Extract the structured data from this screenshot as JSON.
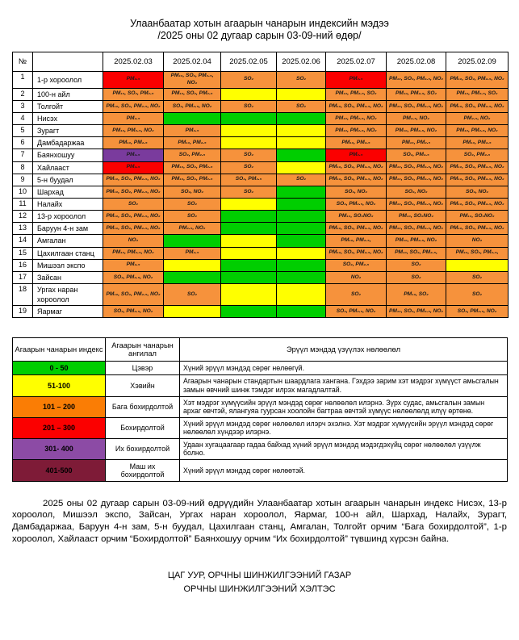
{
  "title": {
    "line1": "Улаанбаатар хотын агаарын чанарын индексийн мэдээ",
    "line2": "/2025 оны 02 дугаар сарын 03-09-ний өдөр/"
  },
  "colors": {
    "green": "#00CE00",
    "yellow": "#FFFF00",
    "orange": "#F6923C",
    "red": "#FB0000",
    "purple": "#7A3B9D"
  },
  "table": {
    "number_header": "№",
    "station_header": "",
    "dates": [
      "2025.02.03",
      "2025.02.04",
      "2025.02.05",
      "2025.02.06",
      "2025.02.07",
      "2025.02.08",
      "2025.02.09"
    ],
    "rows": [
      {
        "no": "1",
        "station": "1-р хороолол",
        "cells": [
          [
            "red",
            "PM₂.₅"
          ],
          [
            "orange",
            "PM₁₀, SO₂, PM₂.₅, NO₂"
          ],
          [
            "orange",
            "SO₂"
          ],
          [
            "orange",
            "SO₂"
          ],
          [
            "red",
            "PM₂.₅"
          ],
          [
            "orange",
            "PM₁₀, SO₂, PM₂.₅, NO₂"
          ],
          [
            "orange",
            "PM₁₀, SO₂, PM₂.₅, NO₂"
          ]
        ]
      },
      {
        "no": "2",
        "station": "100-н айл",
        "cells": [
          [
            "orange",
            "PM₁₀, SO₂, PM₂.₅"
          ],
          [
            "orange",
            "PM₁₀, SO₂, PM₂.₅"
          ],
          [
            "yellow",
            ""
          ],
          [
            "yellow",
            ""
          ],
          [
            "orange",
            "PM₁₀, PM₂.₅, SO₂"
          ],
          [
            "orange",
            "PM₁₀, PM₂.₅, SO₂"
          ],
          [
            "orange",
            "PM₁₀, PM₂.₅, SO₂"
          ]
        ]
      },
      {
        "no": "3",
        "station": "Толгойт",
        "cells": [
          [
            "orange",
            "PM₁₀, SO₂, PM₂.₅, NO₂"
          ],
          [
            "orange",
            "SO₂, PM₂.₅, NO₂"
          ],
          [
            "orange",
            "SO₂"
          ],
          [
            "orange",
            "SO₂"
          ],
          [
            "orange",
            "PM₁₀, SO₂, PM₂.₅, NO₂"
          ],
          [
            "orange",
            "PM₁₀, SO₂, PM₂.₅, NO₂"
          ],
          [
            "orange",
            "PM₁₀, SO₂, PM₂.₅, NO₂"
          ]
        ]
      },
      {
        "no": "4",
        "station": "Нисэх",
        "cells": [
          [
            "orange",
            "PM₂.₅"
          ],
          [
            "green",
            ""
          ],
          [
            "green",
            ""
          ],
          [
            "green",
            ""
          ],
          [
            "orange",
            "PM₁₀, PM₂.₅, NO₂"
          ],
          [
            "orange",
            "PM₂.₅, NO₂"
          ],
          [
            "orange",
            "PM₂.₅, NO₂"
          ]
        ]
      },
      {
        "no": "5",
        "station": "Зурагт",
        "cells": [
          [
            "orange",
            "PM₁₀, PM₂.₅, NO₂"
          ],
          [
            "orange",
            "PM₂.₅"
          ],
          [
            "yellow",
            ""
          ],
          [
            "yellow",
            ""
          ],
          [
            "orange",
            "PM₁₀, PM₂.₅, NO₂"
          ],
          [
            "orange",
            "PM₁₀, PM₂.₅, NO₂"
          ],
          [
            "orange",
            "PM₁₀, PM₂.₅, NO₂"
          ]
        ]
      },
      {
        "no": "6",
        "station": "Дамбадаржаа",
        "cells": [
          [
            "orange",
            "PM₁₀, PM₂.₅"
          ],
          [
            "orange",
            "PM₁₀, PM₂.₅"
          ],
          [
            "yellow",
            ""
          ],
          [
            "yellow",
            ""
          ],
          [
            "orange",
            "PM₁₀, PM₂.₅"
          ],
          [
            "orange",
            "PM₁₀, PM₂.₅"
          ],
          [
            "orange",
            "PM₁₀, PM₂.₅"
          ]
        ]
      },
      {
        "no": "7",
        "station": "Баянхошуу",
        "cells": [
          [
            "purple",
            "PM₂.₅"
          ],
          [
            "orange",
            "SO₂, PM₂.₅"
          ],
          [
            "orange",
            "SO₂"
          ],
          [
            "green",
            ""
          ],
          [
            "red",
            "PM₂.₅"
          ],
          [
            "orange",
            "SO₂, PM₂.₅"
          ],
          [
            "orange",
            "SO₂, PM₂.₅"
          ]
        ]
      },
      {
        "no": "8",
        "station": "Хайлааст",
        "cells": [
          [
            "red",
            "PM₂.₅"
          ],
          [
            "orange",
            "PM₁₀, SO₂, PM₂.₅"
          ],
          [
            "orange",
            "SO₂"
          ],
          [
            "yellow",
            ""
          ],
          [
            "orange",
            "PM₁₀, SO₂, PM₂.₅, NO₂"
          ],
          [
            "orange",
            "PM₁₀, SO₂, PM₂.₅, NO₂"
          ],
          [
            "orange",
            "PM₁₀, SO₂, PM₂.₅, NO₂"
          ]
        ]
      },
      {
        "no": "9",
        "station": "5-н буудал",
        "cells": [
          [
            "orange",
            "PM₁₀, SO₂, PM₂.₅, NO₂"
          ],
          [
            "orange",
            "PM₁₀, SO₂, PM₂.₅"
          ],
          [
            "orange",
            "SO₂, PM₂.₅"
          ],
          [
            "orange",
            "SO₂"
          ],
          [
            "orange",
            "PM₁₀, SO₂, PM₂.₅, NO₂"
          ],
          [
            "orange",
            "PM₁₀, SO₂, PM₂.₅, NO₂"
          ],
          [
            "orange",
            "PM₁₀, SO₂, PM₂.₅, NO₂"
          ]
        ]
      },
      {
        "no": "10",
        "station": "Шархад",
        "cells": [
          [
            "orange",
            "PM₁₀, SO₂, PM₂.₅, NO₂"
          ],
          [
            "orange",
            "SO₂, NO₂"
          ],
          [
            "orange",
            "SO₂"
          ],
          [
            "green",
            ""
          ],
          [
            "orange",
            "SO₂, NO₂"
          ],
          [
            "orange",
            "SO₂, NO₂"
          ],
          [
            "orange",
            "SO₂, NO₂"
          ]
        ]
      },
      {
        "no": "11",
        "station": "Налайх",
        "cells": [
          [
            "orange",
            "SO₂"
          ],
          [
            "orange",
            "SO₂"
          ],
          [
            "yellow",
            ""
          ],
          [
            "green",
            ""
          ],
          [
            "orange",
            "SO₂, PM₂.₅, NO₂"
          ],
          [
            "orange",
            "PM₁₀, SO₂, PM₂.₅, NO₂"
          ],
          [
            "orange",
            "PM₁₀, SO₂, PM₂.₅, NO₂"
          ]
        ]
      },
      {
        "no": "12",
        "station": "13-р хороолол",
        "cells": [
          [
            "orange",
            "PM₁₀, SO₂, PM₂.₅, NO₂"
          ],
          [
            "orange",
            "SO₂"
          ],
          [
            "green",
            ""
          ],
          [
            "green",
            ""
          ],
          [
            "orange",
            "PM₁₀, SO₂NO₂"
          ],
          [
            "orange",
            "PM₁₀, SO₂NO₂"
          ],
          [
            "orange",
            "PM₁₀, SO₂NO₂"
          ]
        ]
      },
      {
        "no": "13",
        "station": "Баруун 4-н зам",
        "cells": [
          [
            "orange",
            "PM₁₀, SO₂, PM₂.₅, NO₂"
          ],
          [
            "orange",
            "PM₂.₅, NO₂"
          ],
          [
            "green",
            ""
          ],
          [
            "green",
            ""
          ],
          [
            "orange",
            "PM₁₀, SO₂, PM₂.₅, NO₂"
          ],
          [
            "orange",
            "PM₁₀, SO₂, PM₂.₅, NO₂"
          ],
          [
            "orange",
            "PM₁₀, SO₂, PM₂.₅, NO₂"
          ]
        ]
      },
      {
        "no": "14",
        "station": "Амгалан",
        "cells": [
          [
            "orange",
            "NO₂"
          ],
          [
            "green",
            ""
          ],
          [
            "yellow",
            ""
          ],
          [
            "green",
            ""
          ],
          [
            "orange",
            "PM₁₀, PM₂.₅,"
          ],
          [
            "orange",
            "PM₁₀, PM₂.₅, NO₂"
          ],
          [
            "orange",
            "NO₂"
          ]
        ]
      },
      {
        "no": "15",
        "station": "Цахилгаан станц",
        "cells": [
          [
            "orange",
            "PM₁₀, PM₂.₅, NO₂"
          ],
          [
            "orange",
            "PM₂.₅"
          ],
          [
            "yellow",
            ""
          ],
          [
            "yellow",
            ""
          ],
          [
            "orange",
            "PM₁₀, SO₂, PM₂.₅, NO₂"
          ],
          [
            "orange",
            "PM₁₀, SO₂, PM₂.₅,"
          ],
          [
            "orange",
            "PM₁₀, SO₂, PM₂.₅,"
          ]
        ]
      },
      {
        "no": "16",
        "station": "Мишээл экспо",
        "cells": [
          [
            "orange",
            "PM₂.₅"
          ],
          [
            "yellow",
            ""
          ],
          [
            "green",
            ""
          ],
          [
            "green",
            ""
          ],
          [
            "orange",
            "SO₂, PM₂.₅"
          ],
          [
            "orange",
            "SO₂"
          ],
          [
            "yellow",
            ""
          ]
        ]
      },
      {
        "no": "17",
        "station": "Зайсан",
        "cells": [
          [
            "orange",
            "SO₂, PM₂.₅, NO₂"
          ],
          [
            "green",
            ""
          ],
          [
            "green",
            ""
          ],
          [
            "green",
            ""
          ],
          [
            "orange",
            "NO₂"
          ],
          [
            "orange",
            "SO₂"
          ],
          [
            "orange",
            "SO₂"
          ]
        ]
      },
      {
        "no": "18",
        "station": "Ургах наран хороолол",
        "cells": [
          [
            "orange",
            "PM₁₀, SO₂, PM₂.₅, NO₂"
          ],
          [
            "orange",
            "SO₂"
          ],
          [
            "yellow",
            ""
          ],
          [
            "yellow",
            ""
          ],
          [
            "orange",
            "SO₂"
          ],
          [
            "orange",
            "PM₁₀, SO₂"
          ],
          [
            "orange",
            "SO₂"
          ]
        ]
      },
      {
        "no": "19",
        "station": "Яармаг",
        "cells": [
          [
            "orange",
            "SO₂, PM₂.₅, NO₂"
          ],
          [
            "yellow",
            ""
          ],
          [
            "green",
            ""
          ],
          [
            "green",
            ""
          ],
          [
            "orange",
            "SO₂, PM₂.₅, NO₂"
          ],
          [
            "orange",
            "PM₁₀, SO₂, PM₂.₅, NO₂"
          ],
          [
            "orange",
            "SO₂, PM₂.₅, NO₂"
          ]
        ]
      }
    ]
  },
  "legend": {
    "headers": [
      "Агаарын чанарын индекс",
      "Агаарын чанарын ангилал",
      "Эрүүл мэндэд үзүүлэх нөлөөлөл"
    ],
    "rows": [
      {
        "range": "0 - 50",
        "color": "#00CE00",
        "label": "Цэвэр",
        "desc": "Хүний эрүүл мэндэд сөрөг нөлөөгүй."
      },
      {
        "range": "51-100",
        "color": "#FFFF00",
        "label": "Хэвийн",
        "desc": "Агаарын чанарын стандартын шаардлага хангана. Гэхдээ зарим хэт мэдрэг хүмүүст  амьсгалын замын өвчний шинж тэмдэг илрэх магадлалтай."
      },
      {
        "range": "101 – 200",
        "color": "#FA7D05",
        "label": "Бага бохирдолтой",
        "desc": "Хэт мэдрэг хүмүүсийн эрүүл мэндэд  сөрөг нөлөөлөл илэрнэ. Зүрх судас, амьсгалын замын архаг өвчтэй, ялангуяа гуурсан хоолойн багтраа өвчтэй хүмүүс нөлөөлөлд илүү өртөнө."
      },
      {
        "range": "201 – 300",
        "color": "#FB0000",
        "label": "Бохирдолтой",
        "desc": "Хүний эрүүл мэндэд сөрөг нөлөөлөл илэрч эхэлнэ. Хэт мэдрэг хүмүүсийн эрүүл мэндэд сөрөг нөлөөлөл хүндээр илэрнэ."
      },
      {
        "range": "301- 400",
        "color": "#8C4BA5",
        "label": "Их бохирдолтой",
        "desc": "Удаан хугацаагаар гадаа байхад хүний эрүүл мэндэд мэдэгдэхүйц сөрөг нөлөөлөл үзүүлж болно."
      },
      {
        "range": "401-500",
        "color": "#7E1B37",
        "label": "Маш их бохирдолтой",
        "desc": "Хүний эрүүл мэндэд сөрөг нөлөөтэй."
      }
    ]
  },
  "summary": "2025 оны 02 дугаар сарын 03-09-ний өдрүүдийн Улаанбаатар хотын агаарын чанарын индекс Нисэх, 13-р хороолол, Мишээл экспо, Зайсан, Ургах наран хороолол, Яармаг, 100-н айл, Шархад, Налайх, Зурагт, Дамбадаржаа, Баруун 4-н зам, 5-н буудал, Цахилгаан станц, Амгалан, Толгойт орчим “Бага бохирдолтой”, 1-р хороолол, Хайлааст орчим “Бохирдолтой” Баянхошуу орчим “Их бохирдолтой” түвшинд хүрсэн байна.",
  "footer": {
    "line1": "ЦАГ УУР, ОРЧНЫ ШИНЖИЛГЭЭНИЙ ГАЗАР",
    "line2": "ОРЧНЫ ШИНЖИЛГЭЭНИЙ ХЭЛТЭС"
  }
}
